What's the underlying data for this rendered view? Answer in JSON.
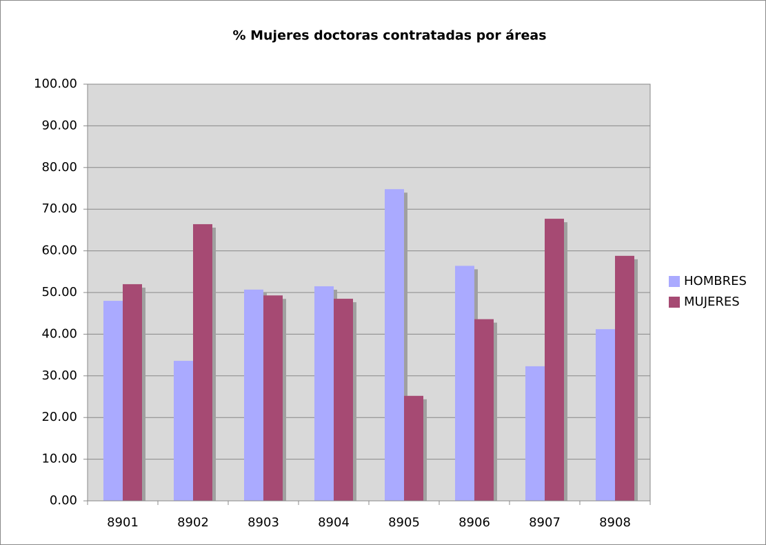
{
  "chart_data": {
    "type": "bar",
    "title": "% Mujeres doctoras contratadas por áreas",
    "categories": [
      "8901",
      "8902",
      "8903",
      "8904",
      "8905",
      "8906",
      "8907",
      "8908"
    ],
    "series": [
      {
        "name": "HOMBRES",
        "color": "#aaaaff",
        "values": [
          48.0,
          33.6,
          50.7,
          51.5,
          74.8,
          56.4,
          32.3,
          41.2
        ]
      },
      {
        "name": "MUJERES",
        "color": "#a64a73",
        "values": [
          52.0,
          66.4,
          49.3,
          48.5,
          25.2,
          43.6,
          67.7,
          58.8
        ]
      }
    ],
    "ylim": [
      0,
      100
    ],
    "yticks": [
      {
        "value": 0,
        "label": "0.00"
      },
      {
        "value": 10,
        "label": "10.00"
      },
      {
        "value": 20,
        "label": "20.00"
      },
      {
        "value": 30,
        "label": "30.00"
      },
      {
        "value": 40,
        "label": "40.00"
      },
      {
        "value": 50,
        "label": "50.00"
      },
      {
        "value": 60,
        "label": "60.00"
      },
      {
        "value": 70,
        "label": "70.00"
      },
      {
        "value": 80,
        "label": "80.00"
      },
      {
        "value": 90,
        "label": "90.00"
      },
      {
        "value": 100,
        "label": "100.00"
      }
    ],
    "grid": true,
    "legend": "right"
  }
}
